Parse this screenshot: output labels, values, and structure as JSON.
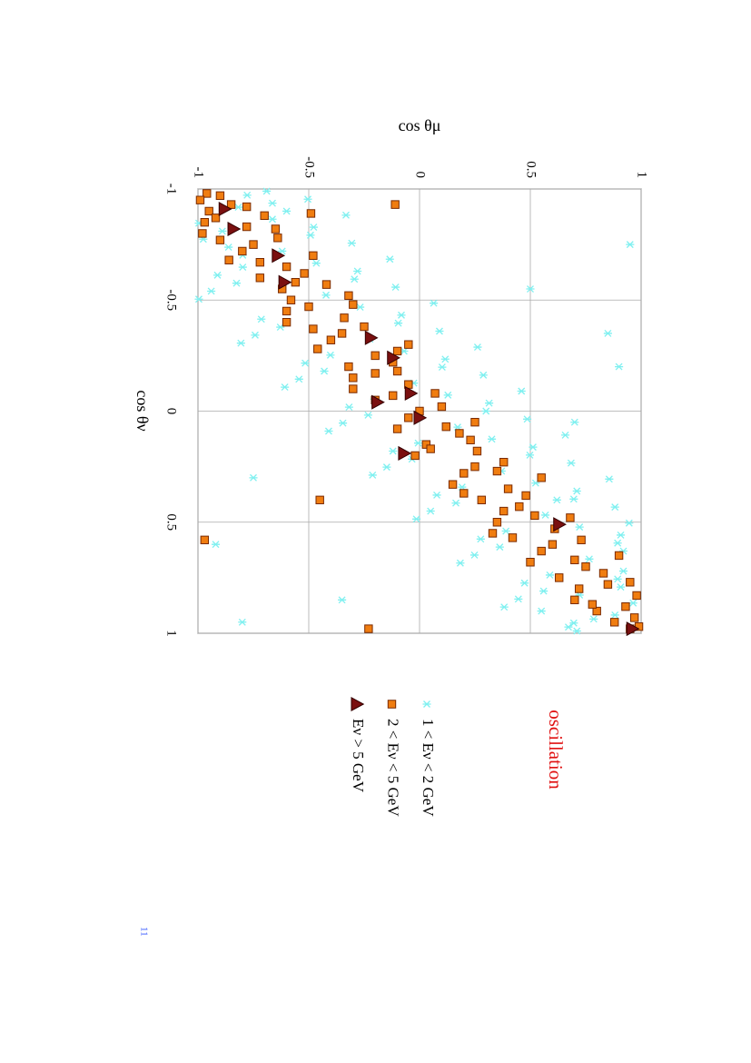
{
  "chart_data": {
    "type": "scatter",
    "title": "oscillation",
    "x_label": "cos θν",
    "y_label": "cos θμ",
    "xlim": [
      -1,
      1
    ],
    "ylim": [
      -1,
      1
    ],
    "xticks": [
      -1,
      -0.5,
      0,
      0.5,
      1
    ],
    "yticks": [
      -1,
      -0.5,
      0,
      0.5,
      1
    ],
    "grid": true,
    "legend": "right",
    "series": [
      {
        "name": "1 < Eν < 2 GeV",
        "color": "#7ff0f0",
        "marker": "star",
        "x": [
          -0.99,
          -0.972,
          -0.954,
          -0.936,
          -0.918,
          -0.9,
          -0.882,
          -0.864,
          -0.846,
          -0.828,
          -0.81,
          -0.792,
          -0.774,
          -0.756,
          -0.738,
          -0.72,
          -0.702,
          -0.684,
          -0.666,
          -0.648,
          -0.63,
          -0.612,
          -0.594,
          -0.576,
          -0.558,
          -0.54,
          -0.522,
          -0.504,
          -0.486,
          -0.468,
          -0.45,
          -0.432,
          -0.414,
          -0.396,
          -0.378,
          -0.36,
          -0.342,
          -0.324,
          -0.306,
          -0.288,
          -0.27,
          -0.252,
          -0.234,
          -0.216,
          -0.198,
          -0.18,
          -0.162,
          -0.144,
          -0.126,
          -0.108,
          -0.09,
          -0.072,
          -0.054,
          -0.036,
          -0.018,
          0,
          0.018,
          0.036,
          0.054,
          0.072,
          0.09,
          0.108,
          0.126,
          0.144,
          0.162,
          0.18,
          0.198,
          0.216,
          0.234,
          0.252,
          0.27,
          0.288,
          0.306,
          0.324,
          0.342,
          0.36,
          0.378,
          0.396,
          0.414,
          0.432,
          0.45,
          0.468,
          0.486,
          0.504,
          0.522,
          0.54,
          0.558,
          0.576,
          0.594,
          0.612,
          0.63,
          0.648,
          0.666,
          0.684,
          0.702,
          0.72,
          0.738,
          0.756,
          0.774,
          0.792,
          0.81,
          0.828,
          0.846,
          0.864,
          0.882,
          0.9,
          0.918,
          0.936,
          0.954,
          0.972,
          0.99,
          0.95,
          0.85,
          0.6,
          0.3,
          -0.2,
          -0.75,
          -0.35,
          0.05,
          -0.55,
          0.4
        ],
        "y": [
          -0.69,
          -0.778,
          -0.504,
          -0.664,
          -0.818,
          -0.6,
          -0.332,
          -0.664,
          -0.996,
          -0.478,
          -0.89,
          -0.492,
          -0.976,
          -0.306,
          -0.862,
          -0.62,
          -0.798,
          -0.134,
          -0.466,
          -0.798,
          -0.28,
          -0.912,
          -0.294,
          -0.826,
          -0.108,
          -0.94,
          -0.422,
          -0.996,
          0.064,
          -0.268,
          -0.6,
          -0.082,
          -0.714,
          -0.096,
          -0.628,
          0.09,
          -0.742,
          -0.224,
          -0.806,
          0.262,
          -0.07,
          -0.402,
          0.116,
          -0.516,
          0.102,
          -0.43,
          0.288,
          -0.544,
          -0.026,
          -0.608,
          0.46,
          0.128,
          -0.204,
          0.314,
          -0.318,
          0.3,
          -0.232,
          0.486,
          -0.346,
          0.172,
          -0.41,
          0.658,
          0.326,
          -0.006,
          0.512,
          -0.12,
          0.498,
          -0.034,
          0.684,
          -0.148,
          0.37,
          -0.212,
          0.856,
          0.524,
          0.192,
          0.71,
          0.078,
          0.696,
          0.164,
          0.882,
          0.05,
          0.568,
          -0.014,
          0.946,
          0.722,
          0.39,
          0.908,
          0.276,
          0.894,
          0.362,
          0.92,
          0.248,
          0.766,
          0.184,
          0.748,
          0.92,
          0.588,
          0.894,
          0.474,
          0.908,
          0.56,
          0.722,
          0.446,
          0.964,
          0.382,
          0.55,
          0.882,
          0.786,
          0.696,
          0.672,
          0.71,
          -0.8,
          -0.35,
          -0.92,
          -0.75,
          0.9,
          0.95,
          0.85,
          0.7,
          0.5,
          0.62
        ]
      },
      {
        "name": "2 < Eν < 5 GeV",
        "color": "#f07d10",
        "marker": "square",
        "x": [
          -0.98,
          -0.95,
          -0.93,
          -0.9,
          -0.88,
          -0.85,
          -0.83,
          -0.8,
          -0.78,
          -0.75,
          -0.72,
          -0.7,
          -0.68,
          -0.65,
          -0.62,
          -0.6,
          -0.58,
          -0.55,
          -0.52,
          -0.5,
          -0.48,
          -0.45,
          -0.42,
          -0.4,
          -0.38,
          -0.35,
          -0.32,
          -0.3,
          -0.28,
          -0.25,
          -0.22,
          -0.2,
          -0.18,
          -0.15,
          -0.12,
          -0.1,
          -0.08,
          -0.05,
          -0.02,
          0,
          0.03,
          0.05,
          0.08,
          0.1,
          0.13,
          0.15,
          0.18,
          0.2,
          0.23,
          0.25,
          0.28,
          0.3,
          0.33,
          0.35,
          0.38,
          0.4,
          0.43,
          0.45,
          0.48,
          0.5,
          0.53,
          0.55,
          0.58,
          0.6,
          0.63,
          0.65,
          0.68,
          0.7,
          0.73,
          0.75,
          0.78,
          0.8,
          0.83,
          0.85,
          0.88,
          0.9,
          0.93,
          0.95,
          0.98,
          -0.97,
          -0.92,
          -0.87,
          -0.82,
          -0.77,
          -0.67,
          -0.57,
          -0.47,
          -0.37,
          -0.27,
          -0.17,
          -0.07,
          0.07,
          0.17,
          0.27,
          0.37,
          0.47,
          0.57,
          0.67,
          0.77,
          0.87,
          0.97,
          0.58,
          0.98,
          0.4,
          -0.89,
          -0.93
        ],
        "y": [
          -0.96,
          -0.99,
          -0.85,
          -0.95,
          -0.7,
          -0.97,
          -0.78,
          -0.98,
          -0.64,
          -0.75,
          -0.8,
          -0.48,
          -0.86,
          -0.6,
          -0.52,
          -0.72,
          -0.56,
          -0.62,
          -0.32,
          -0.58,
          -0.3,
          -0.6,
          -0.34,
          -0.6,
          -0.25,
          -0.35,
          -0.4,
          -0.05,
          -0.46,
          -0.2,
          -0.12,
          -0.32,
          -0.1,
          -0.3,
          -0.05,
          -0.3,
          0.07,
          -0.2,
          0.1,
          0,
          -0.05,
          0.25,
          -0.1,
          0.18,
          0.23,
          0.03,
          0.26,
          -0.02,
          0.38,
          0.25,
          0.2,
          0.55,
          0.15,
          0.4,
          0.48,
          0.28,
          0.45,
          0.38,
          0.68,
          0.35,
          0.61,
          0.33,
          0.73,
          0.6,
          0.55,
          0.9,
          0.5,
          0.75,
          0.83,
          0.63,
          0.85,
          0.72,
          0.98,
          0.7,
          0.93,
          0.8,
          0.97,
          0.88,
          0.95,
          -0.9,
          -0.78,
          -0.92,
          -0.65,
          -0.9,
          -0.72,
          -0.42,
          -0.5,
          -0.48,
          -0.1,
          -0.2,
          -0.12,
          0.12,
          0.05,
          0.35,
          0.2,
          0.52,
          0.42,
          0.7,
          0.95,
          0.78,
          0.99,
          -0.97,
          -0.23,
          -0.45,
          -0.49,
          -0.11
        ]
      },
      {
        "name": "Eν > 5 GeV",
        "color": "#7a1010",
        "marker": "triangle",
        "x": [
          -0.91,
          -0.82,
          -0.7,
          -0.58,
          -0.33,
          -0.24,
          -0.08,
          0.03,
          -0.04,
          0.19,
          0.51,
          0.98
        ],
        "y": [
          -0.88,
          -0.84,
          -0.64,
          -0.61,
          -0.22,
          -0.12,
          -0.04,
          0,
          -0.19,
          -0.07,
          0.63,
          0.96
        ]
      }
    ]
  },
  "page_number": "11"
}
